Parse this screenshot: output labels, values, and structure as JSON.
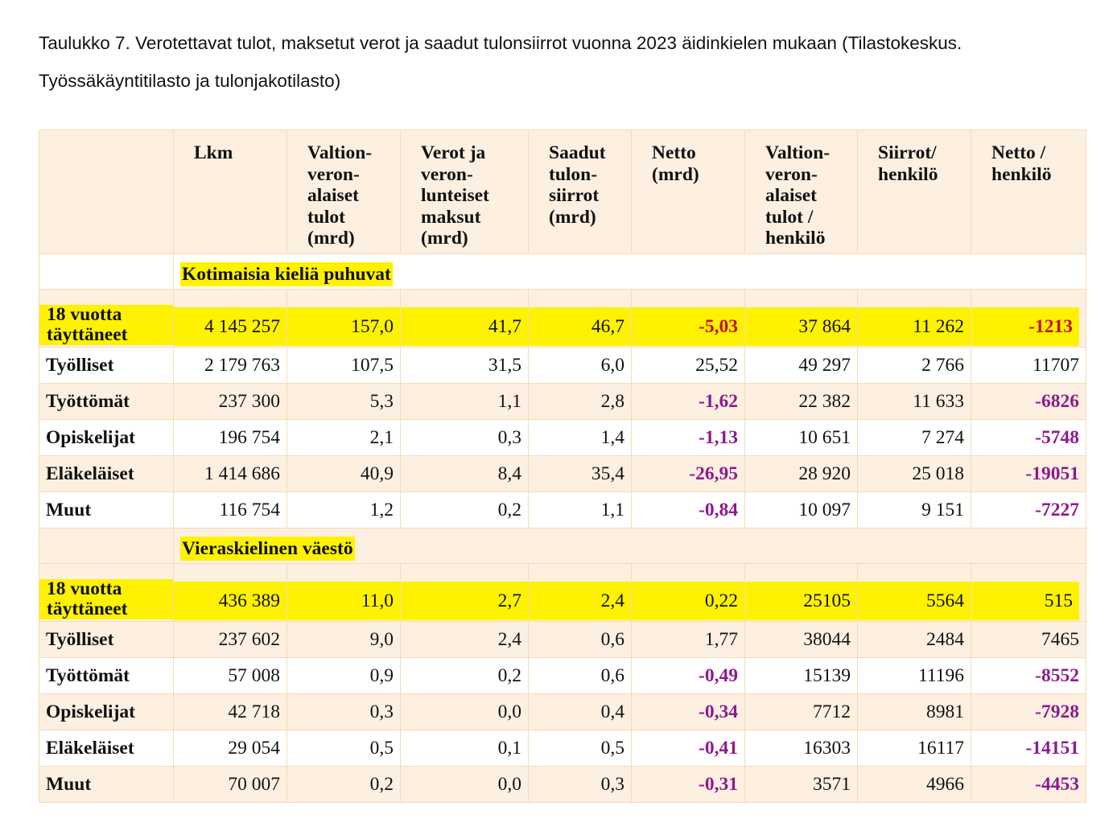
{
  "caption": "Taulukko 7. Verotettavat tulot, maksetut verot ja saadut tulonsiirrot vuonna 2023 äidinkielen mukaan (Tilastokeskus. Työssäkäyntitilasto ja tulonjakotilasto)",
  "headers": [
    "",
    "Lkm",
    "Valtion-veron-alaiset tulot (mrd)",
    "Verot ja veron-lunteiset maksut (mrd)",
    "Saadut tulon-siirrot (mrd)",
    "Netto (mrd)",
    "Valtion-veron-alaiset tulot / henkilö",
    "Siirrot/ henkilö",
    "Netto / henkilö"
  ],
  "sections": [
    {
      "title": "Kotimaisia kieliä puhuvat",
      "summary": {
        "name": "18 vuotta täyttäneet",
        "values": [
          "4 145 257",
          "157,0",
          "41,7",
          "46,7",
          "-5,03",
          "37 864",
          "11 262",
          "-1213"
        ]
      },
      "rows": [
        {
          "name": "Työlliset",
          "values": [
            "2 179 763",
            "107,5",
            "31,5",
            "6,0",
            "25,52",
            "49 297",
            "2 766",
            "11707"
          ]
        },
        {
          "name": "Työttömät",
          "values": [
            "237 300",
            "5,3",
            "1,1",
            "2,8",
            "-1,62",
            "22 382",
            "11 633",
            "-6826"
          ]
        },
        {
          "name": "Opiskelijat",
          "values": [
            "196 754",
            "2,1",
            "0,3",
            "1,4",
            "-1,13",
            "10 651",
            "7 274",
            "-5748"
          ]
        },
        {
          "name": "Eläkeläiset",
          "values": [
            "1 414 686",
            "40,9",
            "8,4",
            "35,4",
            "-26,95",
            "28 920",
            "25 018",
            "-19051"
          ]
        },
        {
          "name": "Muut",
          "values": [
            "116 754",
            "1,2",
            "0,2",
            "1,1",
            "-0,84",
            "10 097",
            "9 151",
            "-7227"
          ]
        }
      ]
    },
    {
      "title": "Vieraskielinen väestö",
      "summary": {
        "name": "18 vuotta täyttäneet",
        "values": [
          "436 389",
          "11,0",
          "2,7",
          "2,4",
          "0,22",
          "25105",
          "5564",
          "515"
        ]
      },
      "rows": [
        {
          "name": "Työlliset",
          "values": [
            "237 602",
            "9,0",
            "2,4",
            "0,6",
            "1,77",
            "38044",
            "2484",
            "7465"
          ]
        },
        {
          "name": "Työttömät",
          "values": [
            "57 008",
            "0,9",
            "0,2",
            "0,6",
            "-0,49",
            "15139",
            "11196",
            "-8552"
          ]
        },
        {
          "name": "Opiskelijat",
          "values": [
            "42 718",
            "0,3",
            "0,0",
            "0,4",
            "-0,34",
            "7712",
            "8981",
            "-7928"
          ]
        },
        {
          "name": "Eläkeläiset",
          "values": [
            "29 054",
            "0,5",
            "0,1",
            "0,5",
            "-0,41",
            "16303",
            "16117",
            "-14151"
          ]
        },
        {
          "name": "Muut",
          "values": [
            "70 007",
            "0,2",
            "0,0",
            "0,3",
            "-0,31",
            "3571",
            "4966",
            "-4453"
          ]
        }
      ]
    }
  ],
  "colors": {
    "highlight": "#fff200",
    "row_tint": "#fdf0e1",
    "border": "#f3dcb5",
    "negative": "#8d1a8c",
    "negative_summary": "#c8111d"
  }
}
